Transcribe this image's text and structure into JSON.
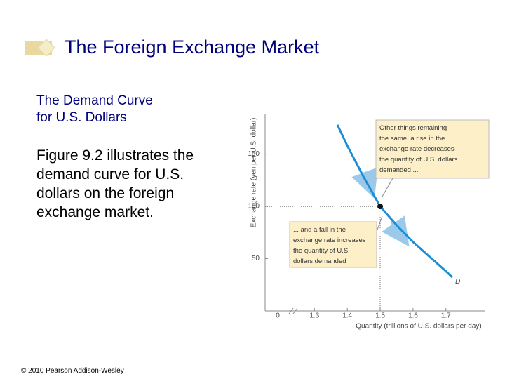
{
  "title": "The Foreign Exchange Market",
  "subtitle_lines": [
    "The Demand Curve",
    "for U.S. Dollars"
  ],
  "body": "Figure 9.2 illustrates the demand curve for U.S. dollars on the foreign exchange market.",
  "footer": "© 2010 Pearson Addison-Wesley",
  "chart_data": {
    "type": "line",
    "xlabel": "Quantity (trillions of U.S. dollars per day)",
    "ylabel": "Exchange rate (yen per U.S. dollar)",
    "origin_label": "0",
    "xlim": [
      1.15,
      1.82
    ],
    "xticks": [
      1.3,
      1.4,
      1.5,
      1.6,
      1.7
    ],
    "ylim": [
      0,
      188
    ],
    "yticks": [
      50,
      100,
      150
    ],
    "series": [
      {
        "name": "D",
        "color": "#1a8fd6",
        "x": [
          1.37,
          1.4,
          1.45,
          1.5,
          1.55,
          1.6,
          1.65,
          1.7,
          1.72
        ],
        "values": [
          178,
          158,
          128,
          100,
          82,
          66,
          52,
          38,
          32
        ]
      }
    ],
    "highlight_point": {
      "x": 1.5,
      "y": 100
    },
    "annotations": [
      {
        "lines": [
          "Other things remaining",
          "the same, a rise in the",
          "exchange rate decreases",
          "the quantity of U.S. dollars",
          "demanded ..."
        ]
      },
      {
        "lines": [
          "... and a fall in the",
          "exchange rate increases",
          "the quantity of U.S.",
          "dollars demanded"
        ]
      }
    ]
  }
}
